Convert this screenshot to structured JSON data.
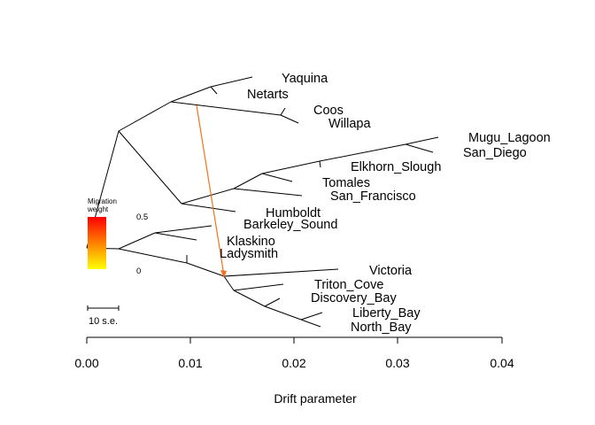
{
  "tree": {
    "tips": [
      "Yaquina",
      "Netarts",
      "Coos",
      "Willapa",
      "Mugu_Lagoon",
      "San_Diego",
      "Elkhorn_Slough",
      "Tomales",
      "San_Francisco",
      "Humboldt",
      "Barkeley_Sound",
      "Klaskino",
      "Ladysmith",
      "Victoria",
      "Triton_Cove",
      "Discovery_Bay",
      "Liberty_Bay",
      "North_Bay"
    ]
  },
  "legend": {
    "title_line1": "Migration",
    "title_line2": "weight",
    "max_label": "0.5",
    "min_label": "0",
    "color_top": "#ff0000",
    "color_bottom": "#ffff00"
  },
  "scale_bar": {
    "label": "10 s.e."
  },
  "migration_edge": {
    "color": "#f5711c",
    "weight": 0.4
  },
  "axis": {
    "ticks": [
      "0.00",
      "0.01",
      "0.02",
      "0.03",
      "0.04"
    ],
    "tick_values": [
      0,
      0.01,
      0.02,
      0.03,
      0.04
    ],
    "label": "Drift parameter"
  }
}
